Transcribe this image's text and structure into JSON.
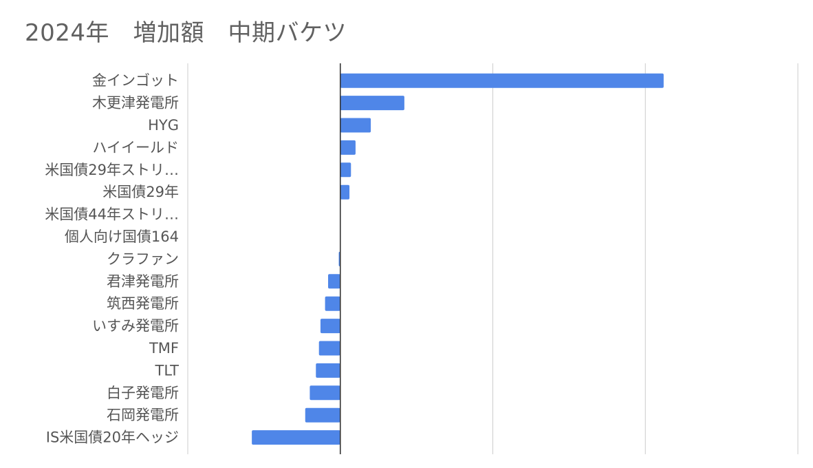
{
  "chart_data": {
    "type": "bar",
    "orientation": "horizontal",
    "title": "2024年　増加額　中期バケツ",
    "xlabel": "",
    "ylabel": "",
    "grid": true,
    "legend": "none",
    "bar_color": "#4f86e8",
    "xlim": [
      -1,
      3
    ],
    "categories": [
      "金インゴット",
      "木更津発電所",
      "HYG",
      "ハイイールド",
      "米国債29年ストリ…",
      "米国債29年",
      "米国債44年ストリ…",
      "個人向け国債164",
      "クラファン",
      "君津発電所",
      "筑西発電所",
      "いすみ発電所",
      "TMF",
      "TLT",
      "白子発電所",
      "石岡発電所",
      "IS米国債20年ヘッジ"
    ],
    "values": [
      2.12,
      0.42,
      0.2,
      0.1,
      0.07,
      0.06,
      0.0,
      0.0,
      -0.01,
      -0.08,
      -0.1,
      -0.13,
      -0.14,
      -0.16,
      -0.2,
      -0.23,
      -0.58
    ]
  }
}
